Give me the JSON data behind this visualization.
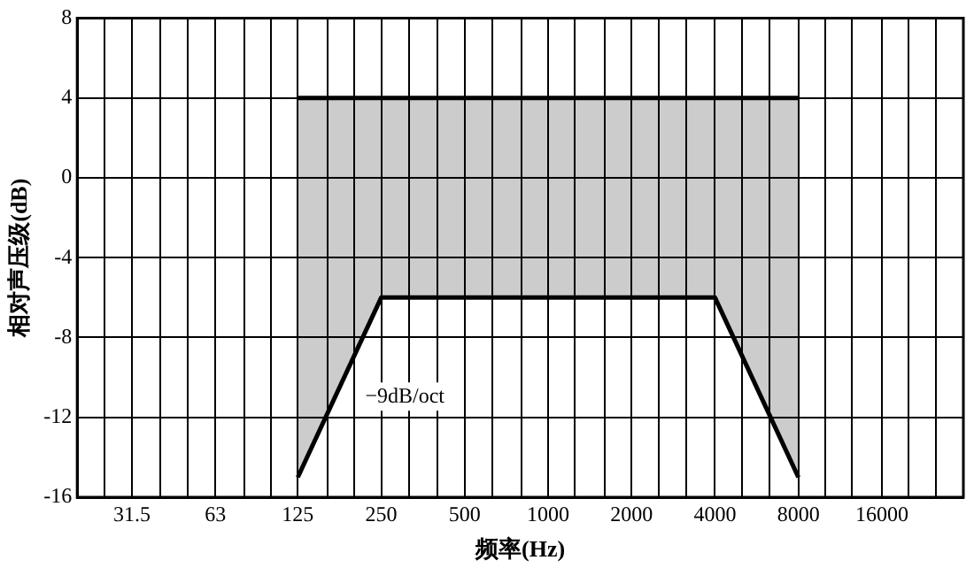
{
  "chart_data": {
    "type": "line",
    "xlabel": "频率(Hz)",
    "ylabel": "相对声压级(dB)",
    "series": [
      {
        "x": [
          125,
          8000
        ],
        "values": [
          4,
          4
        ],
        "color": "#000000"
      },
      {
        "x": [
          125,
          250,
          4000,
          8000
        ],
        "values": [
          -15,
          -6,
          -6,
          -15
        ],
        "lower": [
          -15,
          -6,
          -6,
          -15
        ],
        "upper": [
          4,
          4,
          4,
          4
        ],
        "color": "#000000"
      }
    ],
    "annotations": [
      "−9dB/oct"
    ],
    "log": "x",
    "xlim": [
      20,
      31500
    ],
    "xticks": [
      {
        "value": 25,
        "label": null
      },
      31.5,
      {
        "value": 40,
        "label": null
      },
      {
        "value": 50,
        "label": null
      },
      63,
      {
        "value": 80,
        "label": null
      },
      {
        "value": 100,
        "label": null
      },
      125,
      {
        "value": 160,
        "label": null
      },
      {
        "value": 200,
        "label": null
      },
      250,
      {
        "value": 315,
        "label": null
      },
      {
        "value": 400,
        "label": null
      },
      500,
      {
        "value": 630,
        "label": null
      },
      {
        "value": 800,
        "label": null
      },
      1000,
      {
        "value": 1250,
        "label": null
      },
      {
        "value": 1600,
        "label": null
      },
      2000,
      {
        "value": 2500,
        "label": null
      },
      {
        "value": 3150,
        "label": null
      },
      4000,
      {
        "value": 5000,
        "label": null
      },
      {
        "value": 6300,
        "label": null
      },
      8000,
      {
        "value": 10000,
        "label": null
      },
      {
        "value": 12500,
        "label": null
      },
      16000,
      {
        "value": 20000,
        "label": null
      },
      {
        "value": 25000,
        "label": null
      }
    ],
    "ylim": [
      -16,
      8
    ],
    "yticks": [
      -16,
      -12,
      -8,
      -4,
      0,
      4,
      8
    ],
    "grid": true,
    "legend": false,
    "marker": "none",
    "line_style": "solid"
  }
}
